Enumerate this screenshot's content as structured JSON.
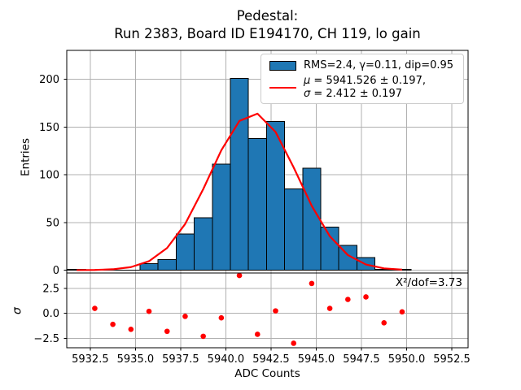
{
  "title": {
    "line1": "Pedestal:",
    "line2": "Run 2383, Board ID E194170, CH 119, lo gain"
  },
  "legend": {
    "hist_label": "RMS=2.4, γ=0.11, dip=0.95",
    "mu_symbol": "μ",
    "mu_text": " = 5941.526 ± 0.197,",
    "sigma_symbol": "σ",
    "sigma_text": " = 2.412 ± 0.197"
  },
  "xaxis": {
    "label": "ADC Counts",
    "tick_values": [
      5932.5,
      5935.0,
      5937.5,
      5940.0,
      5942.5,
      5945.0,
      5947.5,
      5950.0,
      5952.5
    ],
    "tick_labels": [
      "5932.5",
      "5935.0",
      "5937.5",
      "5940.0",
      "5942.5",
      "5945.0",
      "5947.5",
      "5950.0",
      "5952.5"
    ]
  },
  "main_plot": {
    "ylabel": "Entries",
    "ytick_values": [
      0,
      50,
      100,
      150,
      200
    ],
    "ytick_labels": [
      "0",
      "50",
      "100",
      "150",
      "200"
    ]
  },
  "residual_plot": {
    "ylabel": "σ",
    "ytick_values": [
      2.5,
      0.0,
      -2.5
    ],
    "ytick_labels": [
      "2.5",
      "0.0",
      "−2.5"
    ],
    "annotation": "Χ²/dof=3.73"
  },
  "colors": {
    "bar_fill": "#1f77b4",
    "bar_edge": "#000000",
    "fit_line": "#ff0000",
    "residual_marker": "#ff0000",
    "grid": "#b0b0b0",
    "spine": "#000000",
    "legend_border": "#cccccc"
  },
  "chart_data": {
    "type": "histogram",
    "title": "Pedestal:\nRun 2383, Board ID E194170, CH 119, lo gain",
    "xlabel": "ADC Counts",
    "ylabel_top": "Entries",
    "ylabel_bottom": "σ",
    "grid": true,
    "legend_position": "upper right",
    "xlim": [
      5931.2,
      5953.4
    ],
    "ylim_top": [
      -3.0,
      230.3
    ],
    "ylim_bottom": [
      -3.45,
      4.05
    ],
    "bin_width": 1.0,
    "bin_start": 5931.25,
    "bin_counts": [
      1,
      0,
      0,
      0,
      7,
      11,
      38,
      55,
      111,
      201,
      138,
      156,
      85,
      107,
      45,
      26,
      13,
      1,
      1
    ],
    "fit": {
      "type": "gaussian",
      "mu": 5941.526,
      "mu_err": 0.197,
      "sigma": 2.412,
      "sigma_err": 0.197,
      "amplitude": 164.7,
      "x_start": 5931.75,
      "x_end": 5949.75,
      "step": 1.0
    },
    "residuals": {
      "x": [
        5932.75,
        5933.75,
        5934.75,
        5935.75,
        5936.75,
        5937.75,
        5938.75,
        5939.75,
        5940.75,
        5941.75,
        5942.75,
        5943.75,
        5944.75,
        5945.75,
        5946.75,
        5947.75,
        5948.75,
        5949.75
      ],
      "sigma": [
        0.5,
        -1.1,
        -1.6,
        0.2,
        -1.8,
        -0.3,
        -2.3,
        -0.45,
        3.8,
        -2.1,
        0.25,
        -3.0,
        3.0,
        0.5,
        1.4,
        1.65,
        -0.95,
        0.15
      ]
    },
    "stats": {
      "rms": 2.4,
      "gamma": 0.11,
      "dip": 0.95,
      "chi2_per_dof": 3.73
    }
  }
}
